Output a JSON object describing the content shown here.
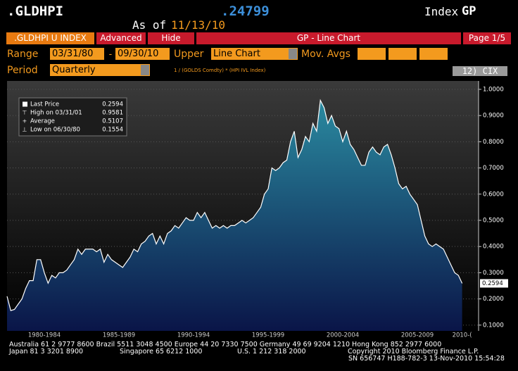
{
  "header": {
    "ticker": ".GLDHPI",
    "as_of_label": "As of",
    "as_of_date": "11/13/10",
    "last_value": ".24799",
    "index_label": "Index",
    "function": "GP"
  },
  "tabs": {
    "security": ".GLDHPI U INDEX",
    "advanced": "Advanced",
    "hide": "Hide",
    "title": "GP - Line Chart",
    "page": "Page 1/5"
  },
  "controls": {
    "range_label": "Range",
    "start": "03/31/80",
    "dash": "-",
    "end": "09/30/10",
    "upper_label": "Upper",
    "upper_value": "Line Chart",
    "mov_avgs_label": "Mov. Avgs",
    "period_label": "Period",
    "period_value": "Quarterly",
    "formula": "1 / (GOLDS Comdty) * (HPI IVL Index)",
    "cix": "12) CIX"
  },
  "chart_data": {
    "type": "area",
    "color": "#ffffff",
    "fill_top": "#2a8aa0",
    "fill_bottom": "#0a1548",
    "grid": true,
    "legend_box": [
      {
        "label": "Last Price",
        "value": 0.2594
      },
      {
        "label": "High on 03/31/01",
        "value": 0.9581
      },
      {
        "label": "Average",
        "value": 0.5107
      },
      {
        "label": "Low on 06/30/80",
        "value": 0.1554
      }
    ],
    "categories": [
      null,
      null,
      null,
      null,
      null,
      null,
      null,
      null,
      null,
      null,
      "1980-1984",
      null,
      null,
      null,
      null,
      null,
      null,
      null,
      null,
      null,
      null,
      null,
      null,
      null,
      null,
      null,
      null,
      null,
      null,
      null,
      "1985-1989",
      null,
      null,
      null,
      null,
      null,
      null,
      null,
      null,
      null,
      null,
      null,
      null,
      null,
      null,
      null,
      null,
      null,
      null,
      null,
      "1990-1994",
      null,
      null,
      null,
      null,
      null,
      null,
      null,
      null,
      null,
      null,
      null,
      null,
      null,
      null,
      null,
      null,
      null,
      null,
      null,
      "1995-1999",
      null,
      null,
      null,
      null,
      null,
      null,
      null,
      null,
      null,
      null,
      null,
      null,
      null,
      null,
      null,
      null,
      null,
      null,
      null,
      "2000-2004",
      null,
      null,
      null,
      null,
      null,
      null,
      null,
      null,
      null,
      null,
      null,
      null,
      null,
      null,
      null,
      null,
      null,
      null,
      null,
      "2005-2009",
      null,
      null,
      null,
      null,
      null,
      null,
      null,
      null,
      null,
      null,
      null,
      "2010-("
    ],
    "values": [
      0.21,
      0.1554,
      0.16,
      0.18,
      0.2,
      0.24,
      0.27,
      0.27,
      0.35,
      0.35,
      0.3,
      0.26,
      0.29,
      0.28,
      0.3,
      0.3,
      0.31,
      0.33,
      0.35,
      0.39,
      0.37,
      0.39,
      0.39,
      0.39,
      0.38,
      0.39,
      0.34,
      0.37,
      0.35,
      0.34,
      0.33,
      0.32,
      0.34,
      0.36,
      0.39,
      0.38,
      0.41,
      0.42,
      0.44,
      0.45,
      0.41,
      0.44,
      0.41,
      0.45,
      0.46,
      0.48,
      0.47,
      0.49,
      0.51,
      0.5,
      0.5,
      0.53,
      0.51,
      0.53,
      0.5,
      0.47,
      0.48,
      0.47,
      0.48,
      0.47,
      0.48,
      0.48,
      0.49,
      0.5,
      0.49,
      0.5,
      0.51,
      0.53,
      0.55,
      0.6,
      0.62,
      0.7,
      0.69,
      0.7,
      0.72,
      0.73,
      0.8,
      0.84,
      0.74,
      0.77,
      0.82,
      0.8,
      0.87,
      0.84,
      0.9581,
      0.93,
      0.87,
      0.9,
      0.86,
      0.85,
      0.8,
      0.84,
      0.79,
      0.77,
      0.74,
      0.71,
      0.71,
      0.76,
      0.78,
      0.76,
      0.75,
      0.78,
      0.79,
      0.75,
      0.7,
      0.64,
      0.62,
      0.63,
      0.6,
      0.58,
      0.56,
      0.5,
      0.44,
      0.41,
      0.4,
      0.41,
      0.4,
      0.39,
      0.36,
      0.33,
      0.3,
      0.29,
      0.2594
    ],
    "ylim": [
      0.078,
      1.032
    ],
    "yticks": [
      {
        "value": 0.1,
        "label": "0.1000"
      },
      {
        "value": 0.2,
        "label": "0.2000"
      },
      {
        "value": 0.3,
        "label": "0.3000"
      },
      {
        "value": 0.4,
        "label": "0.4000"
      },
      {
        "value": 0.5,
        "label": "0.5000"
      },
      {
        "value": 0.6,
        "label": "0.6000"
      },
      {
        "value": 0.7,
        "label": "0.7000"
      },
      {
        "value": 0.8,
        "label": "0.8000"
      },
      {
        "value": 0.9,
        "label": "0.9000"
      },
      {
        "value": 1.0,
        "label": "1.0000"
      }
    ]
  },
  "footer": {
    "line1": "Australia 61 2 9777 8600 Brazil 5511 3048 4500 Europe 44 20 7330 7500 Germany 49 69 9204 1210 Hong Kong 852 2977 6000",
    "japan": "Japan 81 3 3201 8900",
    "singapore": "Singapore 65 6212 1000",
    "us": "U.S. 1 212 318 2000",
    "copyright": "Copyright 2010 Bloomberg Finance L.P.",
    "sn": "SN 656747 H188-782-3 13-Nov-2010 15:54:28"
  }
}
